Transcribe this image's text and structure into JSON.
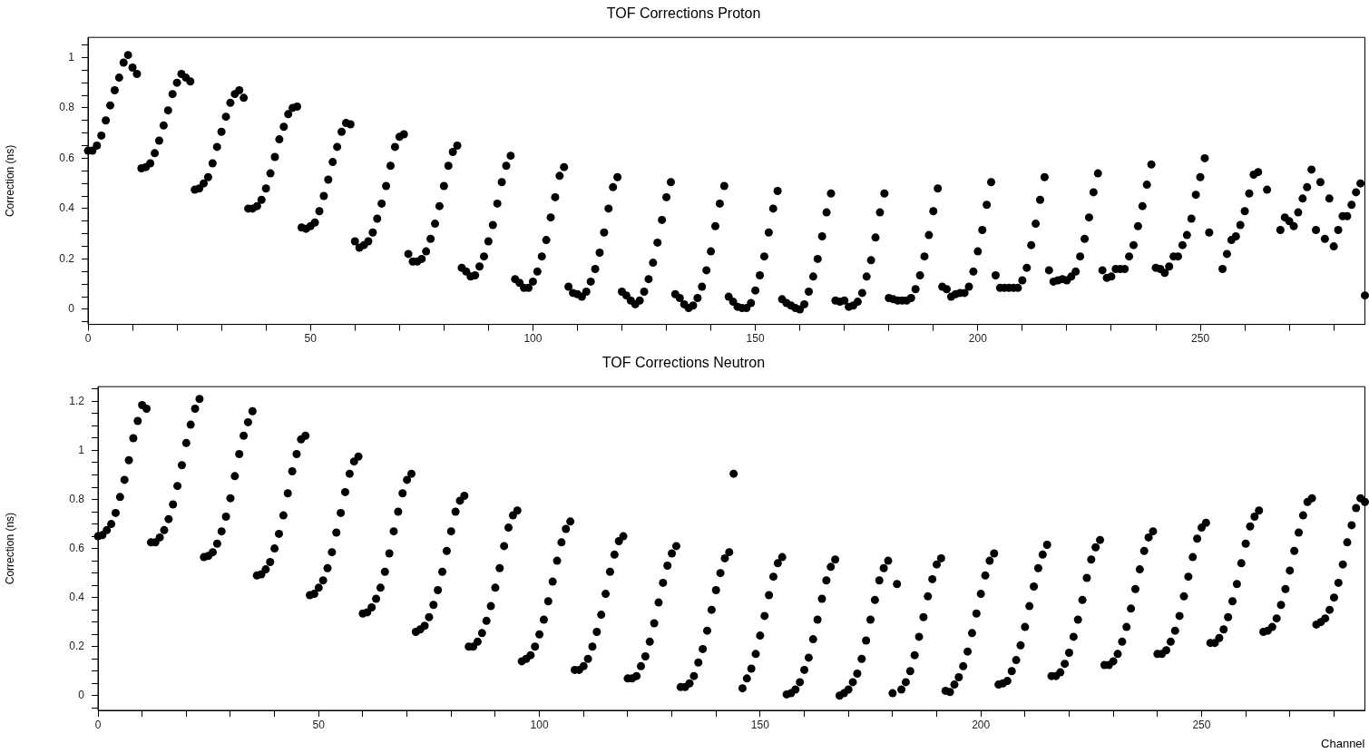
{
  "chart_data": [
    {
      "type": "scatter",
      "title": "TOF Corrections Proton",
      "ylabel": "Correction (ns)",
      "marker": "circle",
      "color": "#000000",
      "grid": false,
      "xlim": [
        0,
        287
      ],
      "xticks": [
        0,
        {
          "value": 10,
          "label": null
        },
        {
          "value": 20,
          "label": null
        },
        {
          "value": 30,
          "label": null
        },
        {
          "value": 40,
          "label": null
        },
        50,
        {
          "value": 60,
          "label": null
        },
        {
          "value": 70,
          "label": null
        },
        {
          "value": 80,
          "label": null
        },
        {
          "value": 90,
          "label": null
        },
        100,
        {
          "value": 110,
          "label": null
        },
        {
          "value": 120,
          "label": null
        },
        {
          "value": 130,
          "label": null
        },
        {
          "value": 140,
          "label": null
        },
        150,
        {
          "value": 160,
          "label": null
        },
        {
          "value": 170,
          "label": null
        },
        {
          "value": 180,
          "label": null
        },
        {
          "value": 190,
          "label": null
        },
        200,
        {
          "value": 210,
          "label": null
        },
        {
          "value": 220,
          "label": null
        },
        {
          "value": 230,
          "label": null
        },
        {
          "value": 240,
          "label": null
        },
        250,
        {
          "value": 260,
          "label": null
        },
        {
          "value": 270,
          "label": null
        },
        {
          "value": 280,
          "label": null
        }
      ],
      "ylim": [
        -0.06,
        1.08
      ],
      "yticks": [
        {
          "value": -0.05,
          "label": null
        },
        0,
        {
          "value": 0.05,
          "label": null
        },
        {
          "value": 0.1,
          "label": null
        },
        {
          "value": 0.15,
          "label": null
        },
        0.2,
        {
          "value": 0.25,
          "label": null
        },
        {
          "value": 0.3,
          "label": null
        },
        {
          "value": 0.35,
          "label": null
        },
        0.4,
        {
          "value": 0.45,
          "label": null
        },
        {
          "value": 0.5,
          "label": null
        },
        {
          "value": 0.55,
          "label": null
        },
        0.6,
        {
          "value": 0.65,
          "label": null
        },
        {
          "value": 0.7,
          "label": null
        },
        {
          "value": 0.75,
          "label": null
        },
        0.8,
        {
          "value": 0.85,
          "label": null
        },
        {
          "value": 0.9,
          "label": null
        },
        {
          "value": 0.95,
          "label": null
        },
        1,
        {
          "value": 1.05,
          "label": null
        }
      ],
      "x": [
        0,
        1,
        2,
        3,
        4,
        5,
        6,
        7,
        8,
        9,
        10,
        11,
        12,
        13,
        14,
        15,
        16,
        17,
        18,
        19,
        20,
        21,
        22,
        23,
        24,
        25,
        26,
        27,
        28,
        29,
        30,
        31,
        32,
        33,
        34,
        35,
        36,
        37,
        38,
        39,
        40,
        41,
        42,
        43,
        44,
        45,
        46,
        47,
        48,
        49,
        50,
        51,
        52,
        53,
        54,
        55,
        56,
        57,
        58,
        59,
        60,
        61,
        62,
        63,
        64,
        65,
        66,
        67,
        68,
        69,
        70,
        71,
        72,
        73,
        74,
        75,
        76,
        77,
        78,
        79,
        80,
        81,
        82,
        83,
        84,
        85,
        86,
        87,
        88,
        89,
        90,
        91,
        92,
        93,
        94,
        95,
        96,
        97,
        98,
        99,
        100,
        101,
        102,
        103,
        104,
        105,
        106,
        107,
        108,
        109,
        110,
        111,
        112,
        113,
        114,
        115,
        116,
        117,
        118,
        119,
        120,
        121,
        122,
        123,
        124,
        125,
        126,
        127,
        128,
        129,
        130,
        131,
        132,
        133,
        134,
        135,
        136,
        137,
        138,
        139,
        140,
        141,
        142,
        143,
        144,
        145,
        146,
        147,
        148,
        149,
        150,
        151,
        152,
        153,
        154,
        155,
        156,
        157,
        158,
        159,
        160,
        161,
        162,
        163,
        164,
        165,
        166,
        167,
        168,
        169,
        170,
        171,
        172,
        173,
        174,
        175,
        176,
        177,
        178,
        179,
        180,
        181,
        182,
        183,
        184,
        185,
        186,
        187,
        188,
        189,
        190,
        191,
        192,
        193,
        194,
        195,
        196,
        197,
        198,
        199,
        200,
        201,
        202,
        203,
        204,
        205,
        206,
        207,
        208,
        209,
        210,
        211,
        212,
        213,
        214,
        215,
        216,
        217,
        218,
        219,
        220,
        221,
        222,
        223,
        224,
        225,
        226,
        227,
        228,
        229,
        230,
        231,
        232,
        233,
        234,
        235,
        236,
        237,
        238,
        239,
        240,
        241,
        242,
        243,
        244,
        245,
        246,
        247,
        248,
        249,
        250,
        251,
        252,
        253,
        254,
        255,
        256,
        257,
        258,
        259,
        260,
        261,
        262,
        263,
        264,
        265,
        266,
        267,
        268,
        269,
        270,
        271,
        272,
        273,
        274,
        275,
        276,
        277,
        278,
        279,
        280,
        281,
        282,
        283,
        284,
        285,
        286,
        287
      ],
      "values": [
        0.63,
        0.63,
        0.65,
        0.69,
        0.75,
        0.81,
        0.87,
        0.92,
        0.98,
        1.01,
        0.96,
        0.935,
        0.56,
        0.565,
        0.58,
        0.62,
        0.67,
        0.73,
        0.79,
        0.855,
        0.9,
        0.935,
        0.92,
        0.905,
        0.475,
        0.48,
        0.5,
        0.525,
        0.58,
        0.645,
        0.705,
        0.765,
        0.82,
        0.855,
        0.87,
        0.84,
        0.4,
        0.4,
        0.41,
        0.435,
        0.48,
        0.54,
        0.605,
        0.675,
        0.725,
        0.775,
        0.8,
        0.805,
        0.325,
        0.32,
        0.33,
        0.345,
        0.39,
        0.45,
        0.515,
        0.585,
        0.645,
        0.705,
        0.74,
        0.735,
        0.27,
        0.245,
        0.255,
        0.27,
        0.305,
        0.36,
        0.42,
        0.49,
        0.57,
        0.645,
        0.685,
        0.695,
        0.22,
        0.19,
        0.19,
        0.2,
        0.23,
        0.28,
        0.34,
        0.41,
        0.49,
        0.57,
        0.625,
        0.65,
        0.165,
        0.15,
        0.13,
        0.135,
        0.17,
        0.21,
        0.27,
        0.335,
        0.42,
        0.505,
        0.57,
        0.61,
        0.12,
        0.105,
        0.085,
        0.085,
        0.11,
        0.15,
        0.21,
        0.275,
        0.365,
        0.445,
        0.53,
        0.565,
        0.09,
        0.065,
        0.06,
        0.05,
        0.07,
        0.11,
        0.16,
        0.225,
        0.305,
        0.4,
        0.485,
        0.525,
        0.07,
        0.055,
        0.035,
        0.02,
        0.035,
        0.07,
        0.12,
        0.185,
        0.265,
        0.355,
        0.445,
        0.505,
        0.06,
        0.045,
        0.02,
        0.005,
        0.015,
        0.045,
        0.09,
        0.155,
        0.23,
        0.33,
        0.42,
        0.49,
        0.05,
        0.03,
        0.01,
        0.005,
        0.005,
        0.025,
        0.075,
        0.135,
        0.21,
        0.305,
        0.4,
        0.47,
        0.04,
        0.025,
        0.015,
        0.005,
        0,
        0.02,
        0.07,
        0.13,
        0.2,
        0.29,
        0.385,
        0.46,
        0.035,
        0.03,
        0.035,
        0.01,
        0.015,
        0.03,
        0.065,
        0.13,
        0.195,
        0.285,
        0.385,
        0.46,
        0.045,
        0.04,
        0.035,
        0.035,
        0.035,
        0.045,
        0.08,
        0.135,
        0.21,
        0.295,
        0.39,
        0.48,
        0.09,
        0.08,
        0.05,
        0.06,
        0.065,
        0.065,
        0.09,
        0.15,
        0.23,
        0.315,
        0.415,
        0.505,
        0.135,
        0.085,
        0.085,
        0.085,
        0.085,
        0.085,
        0.115,
        0.165,
        0.255,
        0.34,
        0.435,
        0.525,
        0.155,
        0.11,
        0.115,
        0.12,
        0.115,
        0.13,
        0.15,
        0.21,
        0.28,
        0.365,
        0.465,
        0.54,
        0.155,
        0.125,
        0.13,
        0.16,
        0.16,
        0.16,
        0.21,
        0.255,
        0.33,
        0.41,
        0.495,
        0.575,
        0.165,
        0.16,
        0.145,
        0.17,
        0.21,
        0.21,
        0.255,
        0.295,
        0.36,
        0.455,
        0.525,
        0.6,
        0.305,
        null,
        null,
        0.16,
        0.22,
        0.275,
        0.29,
        0.335,
        0.39,
        0.46,
        0.535,
        0.545,
        null,
        0.475,
        null,
        null,
        0.315,
        0.365,
        0.35,
        0.33,
        0.385,
        0.44,
        0.485,
        0.555,
        0.315,
        0.505,
        0.28,
        0.44,
        0.25,
        0.315,
        0.37,
        0.37,
        0.415,
        0.465,
        0.5,
        0.055
      ]
    },
    {
      "type": "scatter",
      "title": "TOF Corrections Neutron",
      "xlabel": "Channel",
      "ylabel": "Correction (ns)",
      "marker": "circle",
      "color": "#000000",
      "grid": false,
      "xlim": [
        0,
        287
      ],
      "xticks": [
        0,
        {
          "value": 10,
          "label": null
        },
        {
          "value": 20,
          "label": null
        },
        {
          "value": 30,
          "label": null
        },
        {
          "value": 40,
          "label": null
        },
        50,
        {
          "value": 60,
          "label": null
        },
        {
          "value": 70,
          "label": null
        },
        {
          "value": 80,
          "label": null
        },
        {
          "value": 90,
          "label": null
        },
        100,
        {
          "value": 110,
          "label": null
        },
        {
          "value": 120,
          "label": null
        },
        {
          "value": 130,
          "label": null
        },
        {
          "value": 140,
          "label": null
        },
        150,
        {
          "value": 160,
          "label": null
        },
        {
          "value": 170,
          "label": null
        },
        {
          "value": 180,
          "label": null
        },
        {
          "value": 190,
          "label": null
        },
        200,
        {
          "value": 210,
          "label": null
        },
        {
          "value": 220,
          "label": null
        },
        {
          "value": 230,
          "label": null
        },
        {
          "value": 240,
          "label": null
        },
        250,
        {
          "value": 260,
          "label": null
        },
        {
          "value": 270,
          "label": null
        },
        {
          "value": 280,
          "label": null
        }
      ],
      "ylim": [
        -0.06,
        1.26
      ],
      "yticks": [
        {
          "value": -0.05,
          "label": null
        },
        0,
        {
          "value": 0.05,
          "label": null
        },
        {
          "value": 0.1,
          "label": null
        },
        {
          "value": 0.15,
          "label": null
        },
        0.2,
        {
          "value": 0.25,
          "label": null
        },
        {
          "value": 0.3,
          "label": null
        },
        {
          "value": 0.35,
          "label": null
        },
        0.4,
        {
          "value": 0.45,
          "label": null
        },
        {
          "value": 0.5,
          "label": null
        },
        {
          "value": 0.55,
          "label": null
        },
        0.6,
        {
          "value": 0.65,
          "label": null
        },
        {
          "value": 0.7,
          "label": null
        },
        {
          "value": 0.75,
          "label": null
        },
        0.8,
        {
          "value": 0.85,
          "label": null
        },
        {
          "value": 0.9,
          "label": null
        },
        {
          "value": 0.95,
          "label": null
        },
        1,
        {
          "value": 1.05,
          "label": null
        },
        {
          "value": 1.1,
          "label": null
        },
        {
          "value": 1.15,
          "label": null
        },
        1.2,
        {
          "value": 1.25,
          "label": null
        }
      ],
      "x": [
        0,
        1,
        2,
        3,
        4,
        5,
        6,
        7,
        8,
        9,
        10,
        11,
        12,
        13,
        14,
        15,
        16,
        17,
        18,
        19,
        20,
        21,
        22,
        23,
        24,
        25,
        26,
        27,
        28,
        29,
        30,
        31,
        32,
        33,
        34,
        35,
        36,
        37,
        38,
        39,
        40,
        41,
        42,
        43,
        44,
        45,
        46,
        47,
        48,
        49,
        50,
        51,
        52,
        53,
        54,
        55,
        56,
        57,
        58,
        59,
        60,
        61,
        62,
        63,
        64,
        65,
        66,
        67,
        68,
        69,
        70,
        71,
        72,
        73,
        74,
        75,
        76,
        77,
        78,
        79,
        80,
        81,
        82,
        83,
        84,
        85,
        86,
        87,
        88,
        89,
        90,
        91,
        92,
        93,
        94,
        95,
        96,
        97,
        98,
        99,
        100,
        101,
        102,
        103,
        104,
        105,
        106,
        107,
        108,
        109,
        110,
        111,
        112,
        113,
        114,
        115,
        116,
        117,
        118,
        119,
        120,
        121,
        122,
        123,
        124,
        125,
        126,
        127,
        128,
        129,
        130,
        131,
        132,
        133,
        134,
        135,
        136,
        137,
        138,
        139,
        140,
        141,
        142,
        143,
        144,
        145,
        146,
        147,
        148,
        149,
        150,
        151,
        152,
        153,
        154,
        155,
        156,
        157,
        158,
        159,
        160,
        161,
        162,
        163,
        164,
        165,
        166,
        167,
        168,
        169,
        170,
        171,
        172,
        173,
        174,
        175,
        176,
        177,
        178,
        179,
        180,
        181,
        182,
        183,
        184,
        185,
        186,
        187,
        188,
        189,
        190,
        191,
        192,
        193,
        194,
        195,
        196,
        197,
        198,
        199,
        200,
        201,
        202,
        203,
        204,
        205,
        206,
        207,
        208,
        209,
        210,
        211,
        212,
        213,
        214,
        215,
        216,
        217,
        218,
        219,
        220,
        221,
        222,
        223,
        224,
        225,
        226,
        227,
        228,
        229,
        230,
        231,
        232,
        233,
        234,
        235,
        236,
        237,
        238,
        239,
        240,
        241,
        242,
        243,
        244,
        245,
        246,
        247,
        248,
        249,
        250,
        251,
        252,
        253,
        254,
        255,
        256,
        257,
        258,
        259,
        260,
        261,
        262,
        263,
        264,
        265,
        266,
        267,
        268,
        269,
        270,
        271,
        272,
        273,
        274,
        275,
        276,
        277,
        278,
        279,
        280,
        281,
        282,
        283,
        284,
        285,
        286,
        287
      ],
      "values": [
        0.65,
        0.655,
        0.675,
        0.7,
        0.745,
        0.81,
        0.88,
        0.96,
        1.05,
        1.12,
        1.185,
        1.17,
        0.625,
        0.625,
        0.645,
        0.675,
        0.72,
        0.78,
        0.855,
        0.94,
        1.03,
        1.105,
        1.17,
        1.21,
        0.565,
        0.57,
        0.585,
        0.62,
        0.67,
        0.73,
        0.805,
        0.895,
        0.985,
        1.06,
        1.115,
        1.16,
        0.49,
        0.495,
        0.515,
        0.545,
        0.6,
        0.66,
        0.735,
        0.825,
        0.915,
        0.985,
        1.045,
        1.06,
        0.41,
        0.415,
        0.44,
        0.47,
        0.52,
        0.585,
        0.665,
        0.745,
        0.83,
        0.905,
        0.955,
        0.975,
        0.335,
        0.34,
        0.36,
        0.395,
        0.44,
        0.505,
        0.58,
        0.67,
        0.75,
        0.825,
        0.88,
        0.905,
        0.26,
        0.27,
        0.285,
        0.32,
        0.37,
        0.43,
        0.505,
        0.59,
        0.67,
        0.75,
        0.795,
        0.815,
        0.2,
        0.2,
        0.22,
        0.255,
        0.305,
        0.365,
        0.44,
        0.52,
        0.61,
        0.685,
        0.735,
        0.755,
        0.14,
        0.15,
        0.165,
        0.2,
        0.25,
        0.31,
        0.385,
        0.465,
        0.55,
        0.625,
        0.68,
        0.71,
        0.105,
        0.105,
        0.12,
        0.15,
        0.2,
        0.26,
        0.33,
        0.415,
        0.505,
        0.575,
        0.63,
        0.65,
        0.07,
        0.07,
        0.08,
        0.12,
        0.16,
        0.22,
        0.295,
        0.38,
        0.46,
        0.53,
        0.58,
        0.61,
        0.035,
        0.035,
        0.05,
        0.08,
        0.135,
        0.19,
        0.265,
        0.35,
        0.43,
        0.5,
        0.56,
        0.585,
        0.905,
        null,
        0.03,
        0.07,
        0.11,
        0.17,
        0.245,
        0.325,
        0.41,
        0.485,
        0.54,
        0.565,
        0.005,
        0.01,
        0.025,
        0.055,
        0.105,
        0.155,
        0.23,
        0.31,
        0.395,
        0.47,
        0.525,
        0.555,
        0,
        0.01,
        0.025,
        0.055,
        0.09,
        0.15,
        0.225,
        0.31,
        0.39,
        0.47,
        0.52,
        0.55,
        0.01,
        0.455,
        0.025,
        0.055,
        0.1,
        0.165,
        0.24,
        0.32,
        0.405,
        0.475,
        0.535,
        0.56,
        0.02,
        0.015,
        0.045,
        0.075,
        0.12,
        0.18,
        0.255,
        0.335,
        0.415,
        0.49,
        0.55,
        0.58,
        0.045,
        0.05,
        0.06,
        0.1,
        0.145,
        0.205,
        0.28,
        0.365,
        0.445,
        0.52,
        0.575,
        0.615,
        0.08,
        0.08,
        0.095,
        0.13,
        0.175,
        0.24,
        0.31,
        0.39,
        0.48,
        0.555,
        0.605,
        0.635,
        0.125,
        0.125,
        0.14,
        0.17,
        0.22,
        0.28,
        0.355,
        0.435,
        0.515,
        0.59,
        0.645,
        0.67,
        0.17,
        0.17,
        0.185,
        0.22,
        0.265,
        0.325,
        0.405,
        0.485,
        0.565,
        0.64,
        0.685,
        0.705,
        0.215,
        0.215,
        0.235,
        0.27,
        0.32,
        0.385,
        0.455,
        0.54,
        0.62,
        0.69,
        0.73,
        0.755,
        0.26,
        0.265,
        0.28,
        0.315,
        0.37,
        0.435,
        0.51,
        0.59,
        0.665,
        0.735,
        0.79,
        0.805,
        0.29,
        0.3,
        0.315,
        0.35,
        0.4,
        0.46,
        0.535,
        0.625,
        0.695,
        0.765,
        0.805,
        0.79
      ]
    }
  ]
}
